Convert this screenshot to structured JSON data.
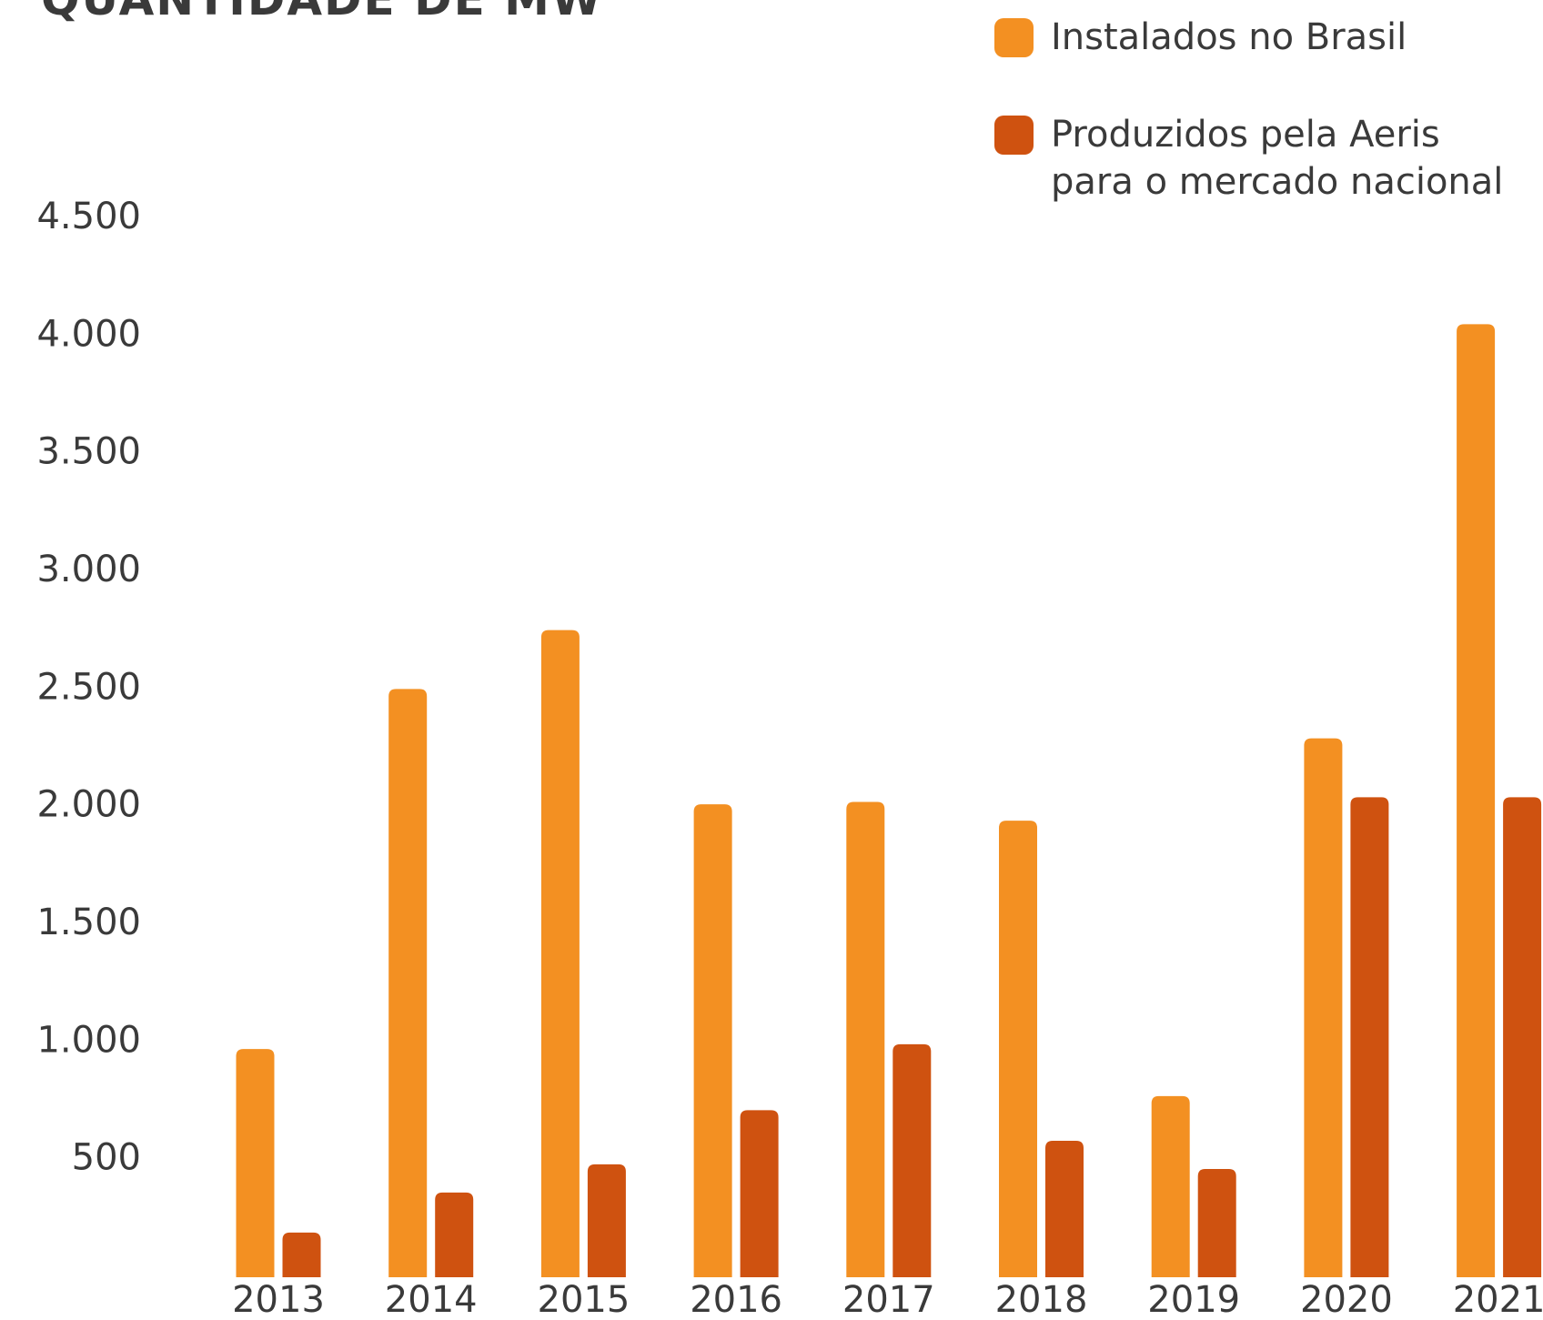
{
  "chart_data": {
    "type": "bar",
    "title": "QUANTIDADE DE MW",
    "categories": [
      "2013",
      "2014",
      "2015",
      "2016",
      "2017",
      "2018",
      "2019",
      "2020",
      "2021"
    ],
    "series": [
      {
        "name": "Instalados no Brasil",
        "color": "#f39022",
        "values": [
          970,
          2500,
          2750,
          2010,
          2020,
          1940,
          770,
          2290,
          4050
        ]
      },
      {
        "name": "Produzidos pela Aeris para o mercado nacional",
        "color": "#cf5210",
        "values": [
          190,
          360,
          480,
          710,
          990,
          580,
          460,
          2040,
          2040
        ]
      }
    ],
    "ylim": [
      0,
      4500
    ],
    "yticks": [
      500,
      {
        "value": 1000,
        "label": "1.000"
      },
      {
        "value": 1500,
        "label": "1.500"
      },
      {
        "value": 2000,
        "label": "2.000"
      },
      {
        "value": 2500,
        "label": "2.500"
      },
      {
        "value": 3000,
        "label": "3.000"
      },
      {
        "value": 3500,
        "label": "3.500"
      },
      {
        "value": 4000,
        "label": "4.000"
      },
      {
        "value": 4500,
        "label": "4.500"
      }
    ],
    "grid": false,
    "legend": "top-right"
  }
}
